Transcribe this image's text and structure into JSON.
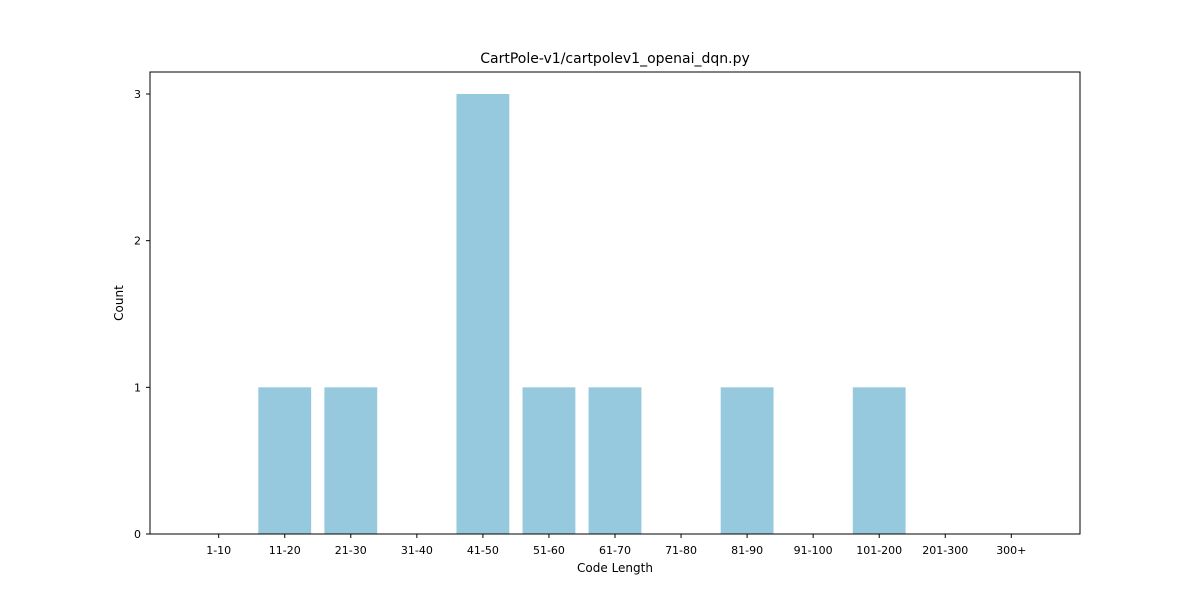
{
  "chart_data": {
    "type": "bar",
    "title": "CartPole-v1/cartpolev1_openai_dqn.py",
    "xlabel": "Code Length",
    "ylabel": "Count",
    "categories": [
      "1-10",
      "11-20",
      "21-30",
      "31-40",
      "41-50",
      "51-60",
      "61-70",
      "71-80",
      "81-90",
      "91-100",
      "101-200",
      "201-300",
      "300+"
    ],
    "values": [
      0,
      1,
      1,
      0,
      3,
      1,
      1,
      0,
      1,
      0,
      1,
      0,
      0
    ],
    "ylim": [
      0,
      3.15
    ],
    "yticks": [
      0,
      1,
      2,
      3
    ],
    "bar_color": "#96c9dd",
    "grid": false,
    "legend": "none"
  }
}
